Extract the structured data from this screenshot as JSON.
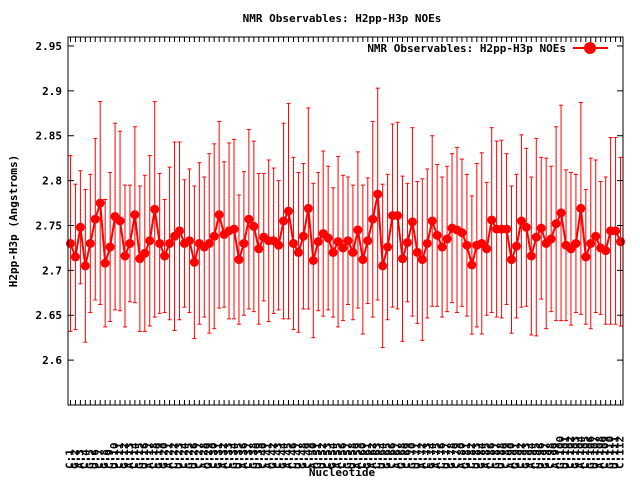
{
  "chart_data": {
    "type": "line",
    "title": "NMR Observables: H2pp-H3p NOEs",
    "xlabel": "Nucleotide",
    "ylabel": "H2pp-H3p (Angstroms)",
    "ylim": [
      2.55,
      2.96
    ],
    "yticks": [
      2.6,
      2.65,
      2.7,
      2.75,
      2.8,
      2.85,
      2.9,
      2.95
    ],
    "ytick_labels": [
      "2.6",
      "2.65",
      "2.7",
      "2.75",
      "2.8",
      "2.85",
      "2.9",
      "2.95"
    ],
    "grid": false,
    "legend_position": "top-right",
    "series": [
      {
        "name": "NMR Observables: H2pp-H3p NOEs",
        "color": "#ff0000",
        "x": [
          1,
          2,
          3,
          4,
          5,
          6,
          7,
          8,
          9,
          10,
          11,
          12,
          13,
          14,
          15,
          16,
          17,
          18,
          19,
          20,
          21,
          22,
          23,
          24,
          25,
          26,
          27,
          28,
          29,
          30,
          31,
          32,
          33,
          34,
          35,
          36,
          37,
          38,
          39,
          40,
          41,
          42,
          43,
          44,
          45,
          46,
          47,
          48,
          49,
          50,
          51,
          52,
          53,
          54,
          55,
          56,
          57,
          58,
          59,
          60,
          61,
          62,
          63,
          64,
          65,
          66,
          67,
          68,
          69,
          70,
          71,
          72,
          73,
          74,
          75,
          76,
          77,
          78,
          79,
          80,
          81,
          82,
          83,
          84,
          85,
          86,
          87,
          88,
          89,
          90,
          91,
          92,
          93,
          94,
          95,
          96,
          97,
          98,
          99,
          100,
          101,
          102,
          103,
          104,
          105,
          106,
          107,
          108,
          109,
          110,
          111,
          112
        ],
        "values": [
          2.73,
          2.715,
          2.748,
          2.705,
          2.73,
          2.757,
          2.775,
          2.708,
          2.726,
          2.76,
          2.755,
          2.716,
          2.73,
          2.762,
          2.713,
          2.719,
          2.733,
          2.768,
          2.73,
          2.716,
          2.73,
          2.738,
          2.744,
          2.73,
          2.733,
          2.709,
          2.73,
          2.726,
          2.73,
          2.738,
          2.762,
          2.74,
          2.744,
          2.746,
          2.712,
          2.73,
          2.757,
          2.749,
          2.724,
          2.737,
          2.733,
          2.733,
          2.728,
          2.755,
          2.766,
          2.73,
          2.72,
          2.738,
          2.769,
          2.711,
          2.732,
          2.741,
          2.736,
          2.72,
          2.732,
          2.725,
          2.733,
          2.72,
          2.745,
          2.712,
          2.733,
          2.757,
          2.785,
          2.705,
          2.726,
          2.761,
          2.761,
          2.713,
          2.731,
          2.754,
          2.72,
          2.712,
          2.73,
          2.755,
          2.739,
          2.726,
          2.735,
          2.747,
          2.745,
          2.742,
          2.728,
          2.706,
          2.728,
          2.73,
          2.724,
          2.756,
          2.746,
          2.746,
          2.746,
          2.712,
          2.727,
          2.755,
          2.748,
          2.716,
          2.737,
          2.747,
          2.73,
          2.735,
          2.752,
          2.764,
          2.728,
          2.724,
          2.73,
          2.769,
          2.715,
          2.73,
          2.738,
          2.725,
          2.722,
          2.744,
          2.744,
          2.732
        ],
        "errors": [
          0.098,
          0.081,
          0.063,
          0.085,
          0.077,
          0.09,
          0.113,
          0.071,
          0.083,
          0.104,
          0.1,
          0.079,
          0.065,
          0.098,
          0.081,
          0.087,
          0.095,
          0.12,
          0.078,
          0.063,
          0.085,
          0.105,
          0.099,
          0.071,
          0.08,
          0.085,
          0.09,
          0.078,
          0.1,
          0.103,
          0.104,
          0.081,
          0.098,
          0.1,
          0.072,
          0.08,
          0.1,
          0.095,
          0.084,
          0.071,
          0.09,
          0.081,
          0.072,
          0.109,
          0.12,
          0.096,
          0.089,
          0.081,
          0.112,
          0.086,
          0.077,
          0.092,
          0.08,
          0.072,
          0.095,
          0.081,
          0.071,
          0.075,
          0.087,
          0.083,
          0.07,
          0.109,
          0.118,
          0.091,
          0.081,
          0.102,
          0.104,
          0.092,
          0.066,
          0.105,
          0.079,
          0.09,
          0.083,
          0.095,
          0.079,
          0.078,
          0.081,
          0.083,
          0.092,
          0.082,
          0.079,
          0.077,
          0.091,
          0.101,
          0.074,
          0.103,
          0.098,
          0.099,
          0.084,
          0.082,
          0.08,
          0.096,
          0.088,
          0.088,
          0.11,
          0.079,
          0.095,
          0.081,
          0.108,
          0.12,
          0.084,
          0.085,
          0.077,
          0.118,
          0.075,
          0.095,
          0.085,
          0.074,
          0.082,
          0.104,
          0.104,
          0.094
        ]
      }
    ],
    "xtick_labels": [
      "C:1",
      "G:2",
      "A:3",
      "C:4",
      "G:5",
      "U:6",
      "C:7",
      "G:8",
      "C:9",
      "U:10",
      "C:11",
      "G:12",
      "A:13",
      "C:14",
      "G:15",
      "U:16",
      "A:17",
      "C:18",
      "G:19",
      "G:20",
      "A:21",
      "C:22",
      "U:23",
      "C:24",
      "G:25",
      "U:26",
      "C:27",
      "A:28",
      "G:29",
      "C:30",
      "G:31",
      "A:32",
      "C:33",
      "G:34",
      "U:35",
      "A:36",
      "C:37",
      "G:38",
      "U:39",
      "C:40",
      "A:41",
      "G:42",
      "C:43",
      "G:44",
      "A:45",
      "C:46",
      "U:47",
      "G:48",
      "C:49",
      "A:50",
      "G:51",
      "U:52",
      "C:53",
      "G:54",
      "A:55",
      "C:56",
      "G:57",
      "U:58",
      "A:59",
      "C:60",
      "G:61",
      "A:62",
      "C:63",
      "U:64",
      "G:65",
      "C:66",
      "A:67",
      "G:68",
      "C:69",
      "G:70",
      "U:71",
      "A:72",
      "C:73",
      "G:74",
      "A:75",
      "C:76",
      "U:77",
      "G:78",
      "C:79",
      "A:80",
      "G:81",
      "C:82",
      "U:83",
      "G:84",
      "A:85",
      "C:86",
      "G:87",
      "U:88",
      "C:89",
      "A:90",
      "G:91",
      "C:92",
      "G:93",
      "A:94",
      "C:95",
      "U:96",
      "G:97",
      "C:98",
      "A:99",
      "G:100",
      "U:101",
      "C:102",
      "G:103",
      "A:104",
      "C:105",
      "G:106",
      "U:107",
      "A:108",
      "C:109",
      "G:110",
      "U:111",
      "C:112"
    ]
  }
}
